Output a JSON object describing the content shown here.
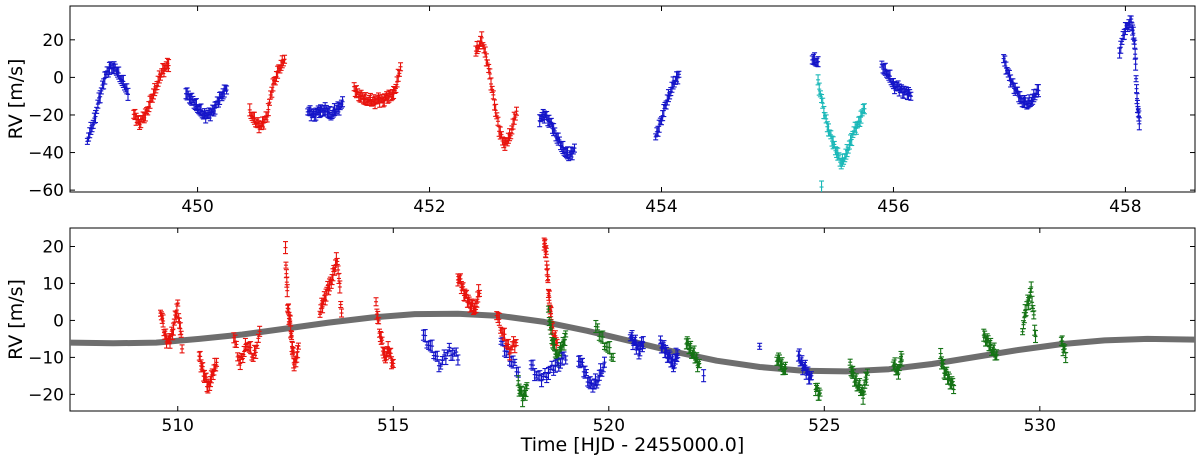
{
  "chart_data": [
    {
      "type": "scatter",
      "id": "top",
      "xlim": [
        448.9,
        458.6
      ],
      "ylim": [
        -61,
        38
      ],
      "xticks": [
        450,
        452,
        454,
        456,
        458
      ],
      "yticks": [
        20,
        0,
        -20,
        -40,
        -60
      ],
      "xtick_labels": [
        "450",
        "452",
        "454",
        "456",
        "458"
      ],
      "ytick_labels": [
        "20",
        "0",
        "−20",
        "−40",
        "−60"
      ],
      "xlabel": "",
      "ylabel": "RV [m/s]",
      "grid": false,
      "colors": {
        "red": "#e8120c",
        "blue": "#1414c8",
        "cyan": "#1ab8b8"
      },
      "segments": [
        {
          "color": "blue",
          "x": [
            449.05,
            449.1,
            449.15,
            449.2,
            449.25,
            449.3,
            449.35,
            449.4
          ],
          "y": [
            -33,
            -25,
            -12,
            0,
            6,
            4,
            -2,
            -8
          ]
        },
        {
          "color": "red",
          "x": [
            449.45,
            449.5,
            449.55,
            449.6,
            449.65,
            449.7,
            449.75
          ],
          "y": [
            -20,
            -24,
            -20,
            -12,
            -4,
            4,
            7
          ]
        },
        {
          "color": "blue",
          "x": [
            449.9,
            449.95,
            450.0,
            450.05,
            450.1,
            450.15,
            450.2,
            450.25
          ],
          "y": [
            -8,
            -12,
            -16,
            -20,
            -20,
            -16,
            -10,
            -6
          ]
        },
        {
          "color": "red",
          "x": [
            450.45,
            450.5,
            450.55,
            450.6,
            450.65,
            450.7,
            450.75
          ],
          "y": [
            -18,
            -24,
            -26,
            -20,
            -4,
            4,
            10
          ]
        },
        {
          "color": "blue",
          "x": [
            450.95,
            451.0,
            451.05,
            451.1,
            451.15,
            451.2,
            451.25
          ],
          "y": [
            -18,
            -20,
            -18,
            -17,
            -20,
            -17,
            -14
          ]
        },
        {
          "color": "red",
          "x": [
            451.35,
            451.4,
            451.45,
            451.5,
            451.55,
            451.6,
            451.65,
            451.7,
            451.75
          ],
          "y": [
            -6,
            -10,
            -12,
            -13,
            -12,
            -12,
            -10,
            -8,
            6
          ]
        },
        {
          "color": "red",
          "x": [
            452.4,
            452.45,
            452.5,
            452.55,
            452.6,
            452.65,
            452.7,
            452.75
          ],
          "y": [
            14,
            20,
            8,
            -10,
            -28,
            -36,
            -30,
            -18
          ]
        },
        {
          "color": "blue",
          "x": [
            452.95,
            453.0,
            453.05,
            453.1,
            453.15,
            453.2,
            453.25
          ],
          "y": [
            -22,
            -20,
            -25,
            -32,
            -38,
            -42,
            -38
          ]
        },
        {
          "color": "blue",
          "x": [
            453.95,
            454.0,
            454.05,
            454.1,
            454.15
          ],
          "y": [
            -32,
            -22,
            -12,
            -4,
            2
          ]
        },
        {
          "color": "blue",
          "x": [
            455.3,
            455.35
          ],
          "y": [
            10,
            8
          ]
        },
        {
          "color": "cyan",
          "x": [
            455.35,
            455.4,
            455.45,
            455.5,
            455.55,
            455.6,
            455.65,
            455.7,
            455.75
          ],
          "y": [
            -2,
            -18,
            -30,
            -38,
            -46,
            -40,
            -30,
            -24,
            -16
          ]
        },
        {
          "color": "cyan",
          "x": [
            455.38
          ],
          "y": [
            -58
          ]
        },
        {
          "color": "blue",
          "x": [
            455.9,
            455.95,
            456.0,
            456.05,
            456.1,
            456.15
          ],
          "y": [
            6,
            2,
            -4,
            -6,
            -8,
            -9
          ]
        },
        {
          "color": "blue",
          "x": [
            456.95,
            457.0,
            457.05,
            457.1,
            457.15,
            457.2,
            457.25
          ],
          "y": [
            10,
            0,
            -6,
            -12,
            -14,
            -12,
            -6
          ]
        },
        {
          "color": "blue",
          "x": [
            457.95,
            458.0,
            458.05,
            458.08,
            458.1,
            458.12
          ],
          "y": [
            14,
            26,
            30,
            18,
            -12,
            -24
          ]
        }
      ]
    },
    {
      "type": "scatter",
      "id": "bottom",
      "xlim": [
        507.5,
        533.6
      ],
      "ylim": [
        -24.5,
        25
      ],
      "xticks": [
        510,
        515,
        520,
        525,
        530
      ],
      "yticks": [
        20,
        10,
        0,
        -10,
        -20
      ],
      "xtick_labels": [
        "510",
        "515",
        "520",
        "525",
        "530"
      ],
      "ytick_labels": [
        "20",
        "10",
        "0",
        "−10",
        "−20"
      ],
      "xlabel": "Time [HJD - 2455000.0]",
      "ylabel": "RV [m/s]",
      "grid": false,
      "colors": {
        "red": "#e8120c",
        "blue": "#1414c8",
        "green": "#157315"
      },
      "model": {
        "color": "#6e6e6e",
        "x": [
          507.5,
          508.5,
          509.5,
          510.5,
          511.5,
          512.5,
          513.5,
          514.5,
          515.5,
          516.5,
          517.5,
          518.5,
          519.5,
          520.5,
          521.5,
          522.5,
          523.5,
          524.5,
          525.5,
          526.5,
          527.5,
          528.5,
          529.5,
          530.5,
          531.5,
          532.5,
          533.6
        ],
        "y": [
          -6,
          -6.2,
          -6,
          -5,
          -3.8,
          -2.2,
          -0.6,
          0.8,
          1.7,
          1.8,
          1.2,
          -0.4,
          -2.8,
          -5.6,
          -8.4,
          -10.9,
          -12.6,
          -13.6,
          -13.8,
          -13.2,
          -11.8,
          -9.9,
          -8,
          -6.4,
          -5.4,
          -5,
          -5.2
        ]
      },
      "segments": [
        {
          "color": "red",
          "x": [
            509.6,
            509.7,
            509.8,
            509.9,
            510.0,
            510.1
          ],
          "y": [
            3,
            -4,
            -6,
            -2,
            4,
            -7
          ]
        },
        {
          "color": "red",
          "x": [
            510.5,
            510.6,
            510.7,
            510.8,
            510.9
          ],
          "y": [
            -10,
            -14,
            -18,
            -15,
            -11
          ]
        },
        {
          "color": "red",
          "x": [
            511.3,
            511.45,
            511.6,
            511.75,
            511.9
          ],
          "y": [
            -4,
            -12,
            -6,
            -10,
            -4
          ]
        },
        {
          "color": "red",
          "x": [
            512.5,
            512.55,
            512.6,
            512.65,
            512.7,
            512.8
          ],
          "y": [
            19,
            4,
            0,
            -6,
            -12,
            -8
          ]
        },
        {
          "color": "red",
          "x": [
            513.3,
            513.4,
            513.5,
            513.6,
            513.7,
            513.8
          ],
          "y": [
            2,
            6,
            9,
            12,
            17,
            2
          ]
        },
        {
          "color": "red",
          "x": [
            514.6,
            514.7,
            514.8,
            514.9,
            515.0
          ],
          "y": [
            4,
            -4,
            -10,
            -8,
            -12
          ]
        },
        {
          "color": "blue",
          "x": [
            515.7,
            515.9,
            516.1,
            516.3,
            516.5
          ],
          "y": [
            -4,
            -8,
            -12,
            -8,
            -10
          ]
        },
        {
          "color": "red",
          "x": [
            516.5,
            516.6,
            516.7,
            516.8,
            516.9,
            517.0
          ],
          "y": [
            12,
            9,
            6,
            4,
            3,
            8
          ]
        },
        {
          "color": "blue",
          "x": [
            517.5,
            517.7,
            517.9
          ],
          "y": [
            -6,
            -10,
            -14
          ]
        },
        {
          "color": "red",
          "x": [
            517.4,
            517.55,
            517.7,
            517.85
          ],
          "y": [
            2,
            -4,
            -8,
            -6
          ]
        },
        {
          "color": "green",
          "x": [
            517.9,
            518.0,
            518.1
          ],
          "y": [
            -17,
            -21,
            -18
          ]
        },
        {
          "color": "red",
          "x": [
            518.5,
            518.55,
            518.6,
            518.65,
            518.7,
            518.8
          ],
          "y": [
            21,
            18,
            8,
            2,
            -4,
            -6
          ]
        },
        {
          "color": "green",
          "x": [
            518.6,
            518.7,
            518.8,
            518.9,
            519.0
          ],
          "y": [
            2,
            -6,
            -10,
            -8,
            -4
          ]
        },
        {
          "color": "blue",
          "x": [
            518.2,
            518.4,
            518.6,
            518.8,
            519.0
          ],
          "y": [
            -12,
            -16,
            -14,
            -12,
            -10
          ]
        },
        {
          "color": "blue",
          "x": [
            519.3,
            519.45,
            519.6,
            519.75,
            519.9
          ],
          "y": [
            -10,
            -14,
            -18,
            -16,
            -12
          ]
        },
        {
          "color": "green",
          "x": [
            519.7,
            519.9,
            520.1
          ],
          "y": [
            -2,
            -6,
            -10
          ]
        },
        {
          "color": "blue",
          "x": [
            520.5,
            520.6,
            520.7,
            520.8
          ],
          "y": [
            -4,
            -6,
            -8,
            -6
          ]
        },
        {
          "color": "blue",
          "x": [
            521.2,
            521.3,
            521.4,
            521.5,
            521.6
          ],
          "y": [
            -6,
            -8,
            -10,
            -12,
            -9
          ]
        },
        {
          "color": "green",
          "x": [
            521.8,
            521.9,
            522.0,
            522.1
          ],
          "y": [
            -6,
            -8,
            -10,
            -12
          ]
        },
        {
          "color": "blue",
          "x": [
            522.2
          ],
          "y": [
            -16
          ]
        },
        {
          "color": "blue",
          "x": [
            523.5
          ],
          "y": [
            -7
          ]
        },
        {
          "color": "green",
          "x": [
            523.9,
            524.0,
            524.1
          ],
          "y": [
            -10,
            -12,
            -14
          ]
        },
        {
          "color": "blue",
          "x": [
            524.4,
            524.5,
            524.6,
            524.7
          ],
          "y": [
            -10,
            -12,
            -14,
            -16
          ]
        },
        {
          "color": "green",
          "x": [
            524.8,
            524.9
          ],
          "y": [
            -18,
            -20
          ]
        },
        {
          "color": "green",
          "x": [
            525.6,
            525.7,
            525.8,
            525.9,
            526.0
          ],
          "y": [
            -12,
            -16,
            -18,
            -20,
            -14
          ]
        },
        {
          "color": "green",
          "x": [
            526.6,
            526.7,
            526.8
          ],
          "y": [
            -12,
            -14,
            -10
          ]
        },
        {
          "color": "green",
          "x": [
            527.7,
            527.8,
            527.9,
            528.0
          ],
          "y": [
            -10,
            -14,
            -16,
            -18
          ]
        },
        {
          "color": "green",
          "x": [
            528.7,
            528.8,
            528.9,
            529.0
          ],
          "y": [
            -4,
            -6,
            -8,
            -10
          ]
        },
        {
          "color": "green",
          "x": [
            529.6,
            529.7,
            529.8,
            529.9
          ],
          "y": [
            -2,
            4,
            8,
            -4
          ]
        },
        {
          "color": "green",
          "x": [
            530.5,
            530.6
          ],
          "y": [
            -6,
            -9
          ]
        }
      ]
    }
  ]
}
